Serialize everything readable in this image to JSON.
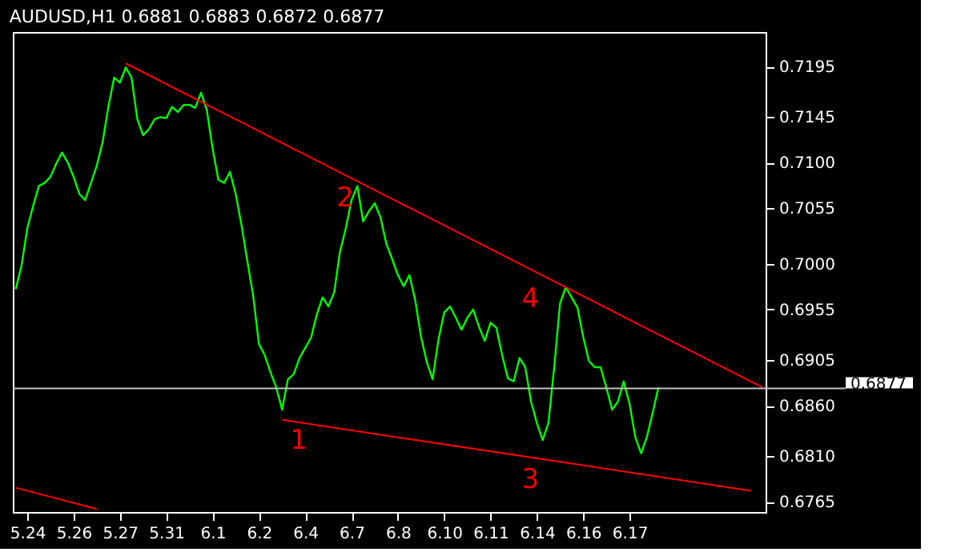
{
  "chart_data": {
    "type": "line",
    "title": "AUDUSD,H1  0.6881 0.6883 0.6872 0.6877",
    "categories": [
      null,
      null,
      "5.24",
      null,
      null,
      null,
      null,
      null,
      null,
      null,
      "5.26",
      null,
      null,
      null,
      null,
      null,
      null,
      null,
      "5.27",
      null,
      null,
      null,
      null,
      null,
      null,
      null,
      "5.31",
      null,
      null,
      null,
      null,
      null,
      null,
      null,
      "6.1",
      null,
      null,
      null,
      null,
      null,
      null,
      null,
      "6.2",
      null,
      null,
      null,
      null,
      null,
      null,
      null,
      "6.4",
      null,
      null,
      null,
      null,
      null,
      null,
      null,
      "6.7",
      null,
      null,
      null,
      null,
      null,
      null,
      null,
      "6.8",
      null,
      null,
      null,
      null,
      null,
      null,
      null,
      "6.10",
      null,
      null,
      null,
      null,
      null,
      null,
      null,
      "6.11",
      null,
      null,
      null,
      null,
      null,
      null,
      null,
      "6.14",
      null,
      null,
      null,
      null,
      null,
      null,
      null,
      "6.16",
      null,
      null,
      null,
      null,
      null,
      null,
      null,
      "6.17",
      null,
      null,
      null,
      null,
      null,
      null,
      null,
      null,
      null,
      null,
      null,
      null,
      null,
      null,
      null,
      null,
      null,
      null,
      null,
      null,
      null,
      null,
      null
    ],
    "ylim": [
      0.6755,
      0.7229
    ],
    "yticks": [
      0.7195,
      0.7145,
      {
        "value": 0.71,
        "label": "0.7100"
      },
      0.7055,
      {
        "value": 0.7,
        "label": "0.7000"
      },
      0.6955,
      0.6905,
      {
        "value": 0.686,
        "label": "0.6860"
      },
      {
        "value": 0.681,
        "label": "0.6810"
      },
      0.6765
    ],
    "grid": false,
    "line_style": "solid",
    "series": [
      {
        "color": "#00ff00",
        "values": [
          0.6975,
          0.6998,
          0.7035,
          0.7057,
          0.7077,
          0.708,
          0.7086,
          0.7099,
          0.711,
          0.71,
          0.7086,
          0.7069,
          0.7063,
          0.708,
          0.7097,
          0.712,
          0.7155,
          0.7184,
          0.7179,
          0.7194,
          0.7184,
          0.7143,
          0.7127,
          0.7133,
          0.7143,
          0.7145,
          0.7144,
          0.7155,
          0.715,
          0.7157,
          0.7157,
          0.7154,
          0.7169,
          0.7152,
          0.7114,
          0.7083,
          0.708,
          0.7091,
          0.7069,
          0.7038,
          0.7003,
          0.6969,
          0.6921,
          0.691,
          0.6893,
          0.6878,
          0.6856,
          0.6886,
          0.6891,
          0.6907,
          0.6917,
          0.6927,
          0.695,
          0.6967,
          0.6958,
          0.6972,
          0.7012,
          0.7035,
          0.7063,
          0.7077,
          0.7042,
          0.7052,
          0.706,
          0.7046,
          0.702,
          0.7005,
          0.6989,
          0.6978,
          0.6989,
          0.6964,
          0.6928,
          0.6903,
          0.6886,
          0.6925,
          0.6952,
          0.6958,
          0.6947,
          0.6935,
          0.6947,
          0.6955,
          0.6938,
          0.6924,
          0.6942,
          0.6937,
          0.691,
          0.6887,
          0.6884,
          0.6907,
          0.6898,
          0.6864,
          0.6843,
          0.6826,
          0.6843,
          0.6898,
          0.6961,
          0.6977,
          0.6967,
          0.6957,
          0.6928,
          0.6904,
          0.6898,
          0.6898,
          0.6878,
          0.6856,
          0.6864,
          0.6884,
          0.6862,
          0.6829,
          0.6813,
          0.6829,
          0.6853,
          0.6878,
          null,
          null,
          null,
          null,
          null,
          null,
          null,
          null,
          null,
          null,
          null,
          null,
          null,
          null,
          null,
          null,
          null,
          null
        ]
      },
      {
        "color": "#ff0000",
        "values": [
          null,
          null,
          null,
          null,
          null,
          null,
          null,
          null,
          null,
          null,
          null,
          null,
          null,
          null,
          null,
          null,
          null,
          null,
          null,
          0.7198,
          null,
          null,
          null,
          null,
          null,
          null,
          null,
          null,
          null,
          null,
          null,
          null,
          null,
          null,
          null,
          null,
          null,
          null,
          null,
          null,
          null,
          null,
          null,
          null,
          null,
          null,
          null,
          null,
          null,
          null,
          null,
          null,
          null,
          null,
          null,
          null,
          null,
          null,
          null,
          null,
          null,
          null,
          null,
          null,
          null,
          null,
          null,
          null,
          null,
          null,
          null,
          null,
          null,
          null,
          null,
          null,
          null,
          null,
          null,
          null,
          null,
          null,
          null,
          null,
          null,
          null,
          null,
          null,
          null,
          null,
          null,
          null,
          null,
          null,
          null,
          null,
          null,
          null,
          null,
          null,
          null,
          null,
          null,
          null,
          null,
          null,
          null,
          null,
          null,
          null,
          null,
          null,
          null,
          null,
          null,
          null,
          null,
          null,
          null,
          null,
          null,
          null,
          null,
          null,
          null,
          null,
          null,
          null,
          null,
          0.6878
        ]
      },
      {
        "color": "#ff0000",
        "values": [
          null,
          null,
          null,
          null,
          null,
          null,
          null,
          null,
          null,
          null,
          null,
          null,
          null,
          null,
          null,
          null,
          null,
          null,
          null,
          null,
          null,
          null,
          null,
          null,
          null,
          null,
          null,
          null,
          null,
          null,
          null,
          null,
          null,
          null,
          null,
          null,
          null,
          null,
          null,
          null,
          null,
          null,
          null,
          null,
          null,
          null,
          0.6846,
          null,
          null,
          null,
          null,
          null,
          null,
          null,
          null,
          null,
          null,
          null,
          null,
          null,
          null,
          null,
          null,
          null,
          null,
          null,
          null,
          null,
          null,
          null,
          null,
          null,
          null,
          null,
          null,
          null,
          null,
          null,
          null,
          null,
          null,
          null,
          null,
          null,
          null,
          null,
          null,
          null,
          null,
          null,
          null,
          null,
          null,
          null,
          null,
          null,
          null,
          null,
          null,
          null,
          null,
          null,
          null,
          null,
          null,
          null,
          null,
          null,
          null,
          null,
          null,
          null,
          null,
          null,
          null,
          null,
          null,
          null,
          null,
          null,
          null,
          null,
          null,
          null,
          null,
          null,
          null,
          0.6776,
          null,
          null
        ]
      },
      {
        "color": "#ff0000",
        "values": [
          0.6779,
          null,
          null,
          null,
          null,
          null,
          null,
          null,
          null,
          null,
          null,
          null,
          null,
          null,
          0.6758,
          null,
          null,
          null,
          null,
          null,
          null,
          null,
          null,
          null,
          null,
          null,
          null,
          null,
          null,
          null,
          null,
          null,
          null,
          null,
          null,
          null,
          null,
          null,
          null,
          null,
          null,
          null,
          null,
          null,
          null,
          null,
          null,
          null,
          null,
          null,
          null,
          null,
          null,
          null,
          null,
          null,
          null,
          null,
          null,
          null,
          null,
          null,
          null,
          null,
          null,
          null,
          null,
          null,
          null,
          null,
          null,
          null,
          null,
          null,
          null,
          null,
          null,
          null,
          null,
          null,
          null,
          null,
          null,
          null,
          null,
          null,
          null,
          null,
          null,
          null,
          null,
          null,
          null,
          null,
          null,
          null,
          null,
          null,
          null,
          null,
          null,
          null,
          null,
          null,
          null,
          null,
          null,
          null,
          null,
          null,
          null,
          null,
          null,
          null,
          null,
          null,
          null,
          null,
          null,
          null,
          null,
          null,
          null,
          null,
          null,
          null,
          null,
          null,
          null,
          null
        ]
      }
    ],
    "ref_lines": [
      {
        "axis": "y",
        "value": 0.6877,
        "label": "0.6877",
        "color": "#c0c0c0"
      }
    ],
    "annotations": [
      {
        "text": "1",
        "x": "6.4",
        "y": 0.6846
      },
      {
        "text": "2",
        "x": "6.7",
        "y": 0.7085
      },
      {
        "text": "3",
        "x": "6.14",
        "y": 0.6807
      },
      {
        "text": "4",
        "x": "6.14",
        "y": 0.6986
      }
    ]
  }
}
